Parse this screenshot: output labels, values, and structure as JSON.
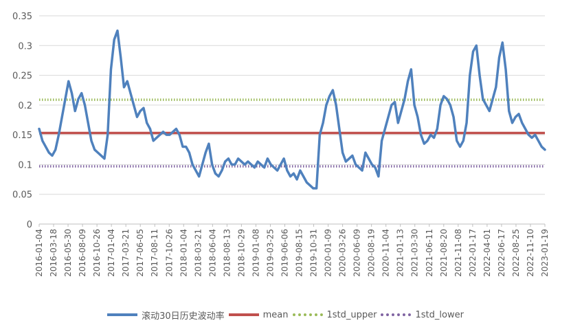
{
  "chart_data": {
    "type": "line",
    "title": "",
    "xlabel": "",
    "ylabel": "",
    "ylim": [
      0,
      0.35
    ],
    "yticks": [
      "0",
      "0.05",
      "0.1",
      "0.15",
      "0.2",
      "0.25",
      "0.3",
      "0.35"
    ],
    "xticks": [
      "2016-01-04",
      "2016-03-18",
      "2016-05-30",
      "2016-08-09",
      "2016-10-26",
      "2017-01-04",
      "2017-03-21",
      "2017-06-05",
      "2017-08-11",
      "2017-10-26",
      "2018-01-04",
      "2018-03-21",
      "2018-06-04",
      "2018-08-13",
      "2018-10-29",
      "2019-01-08",
      "2019-03-25",
      "2019-06-06",
      "2019-08-15",
      "2019-10-31",
      "2020-01-09",
      "2020-03-26",
      "2020-06-09",
      "2020-08-19",
      "2020-11-04",
      "2021-01-13",
      "2021-03-30",
      "2021-06-11",
      "2021-08-20",
      "2021-11-08",
      "2022-01-17",
      "2022-04-01",
      "2022-06-17",
      "2022-08-25",
      "2022-11-10",
      "2023-01-19"
    ],
    "grid": "horizontal",
    "legend": "bottom",
    "series": [
      {
        "name": "滚动30日历史波动率",
        "color": "#4F81BD",
        "style": "solid",
        "values": [
          0.16,
          0.14,
          0.13,
          0.12,
          0.115,
          0.125,
          0.15,
          0.18,
          0.21,
          0.24,
          0.22,
          0.19,
          0.21,
          0.22,
          0.2,
          0.17,
          0.14,
          0.125,
          0.12,
          0.115,
          0.11,
          0.15,
          0.26,
          0.31,
          0.325,
          0.28,
          0.23,
          0.24,
          0.22,
          0.2,
          0.18,
          0.19,
          0.195,
          0.17,
          0.16,
          0.14,
          0.145,
          0.15,
          0.155,
          0.15,
          0.15,
          0.155,
          0.16,
          0.15,
          0.13,
          0.13,
          0.12,
          0.1,
          0.09,
          0.08,
          0.1,
          0.12,
          0.135,
          0.1,
          0.085,
          0.08,
          0.09,
          0.105,
          0.11,
          0.1,
          0.1,
          0.11,
          0.105,
          0.1,
          0.105,
          0.1,
          0.095,
          0.105,
          0.1,
          0.095,
          0.11,
          0.1,
          0.095,
          0.09,
          0.1,
          0.11,
          0.09,
          0.08,
          0.085,
          0.075,
          0.09,
          0.08,
          0.07,
          0.065,
          0.06,
          0.06,
          0.15,
          0.17,
          0.2,
          0.215,
          0.225,
          0.2,
          0.16,
          0.12,
          0.105,
          0.11,
          0.115,
          0.1,
          0.095,
          0.09,
          0.12,
          0.11,
          0.1,
          0.095,
          0.08,
          0.14,
          0.16,
          0.18,
          0.2,
          0.205,
          0.17,
          0.19,
          0.21,
          0.24,
          0.26,
          0.2,
          0.18,
          0.15,
          0.135,
          0.14,
          0.15,
          0.145,
          0.16,
          0.2,
          0.215,
          0.21,
          0.2,
          0.18,
          0.14,
          0.13,
          0.14,
          0.17,
          0.25,
          0.29,
          0.3,
          0.25,
          0.21,
          0.2,
          0.19,
          0.21,
          0.23,
          0.28,
          0.305,
          0.26,
          0.19,
          0.17,
          0.18,
          0.185,
          0.17,
          0.16,
          0.15,
          0.145,
          0.15,
          0.14,
          0.13,
          0.125
        ]
      },
      {
        "name": "mean",
        "color": "#C0504D",
        "style": "solid",
        "value": 0.153
      },
      {
        "name": "1std_upper",
        "color": "#9BBB59",
        "style": "dotted",
        "value": 0.209
      },
      {
        "name": "1std_lower",
        "color": "#8064A2",
        "style": "dotted",
        "value": 0.097
      }
    ]
  }
}
